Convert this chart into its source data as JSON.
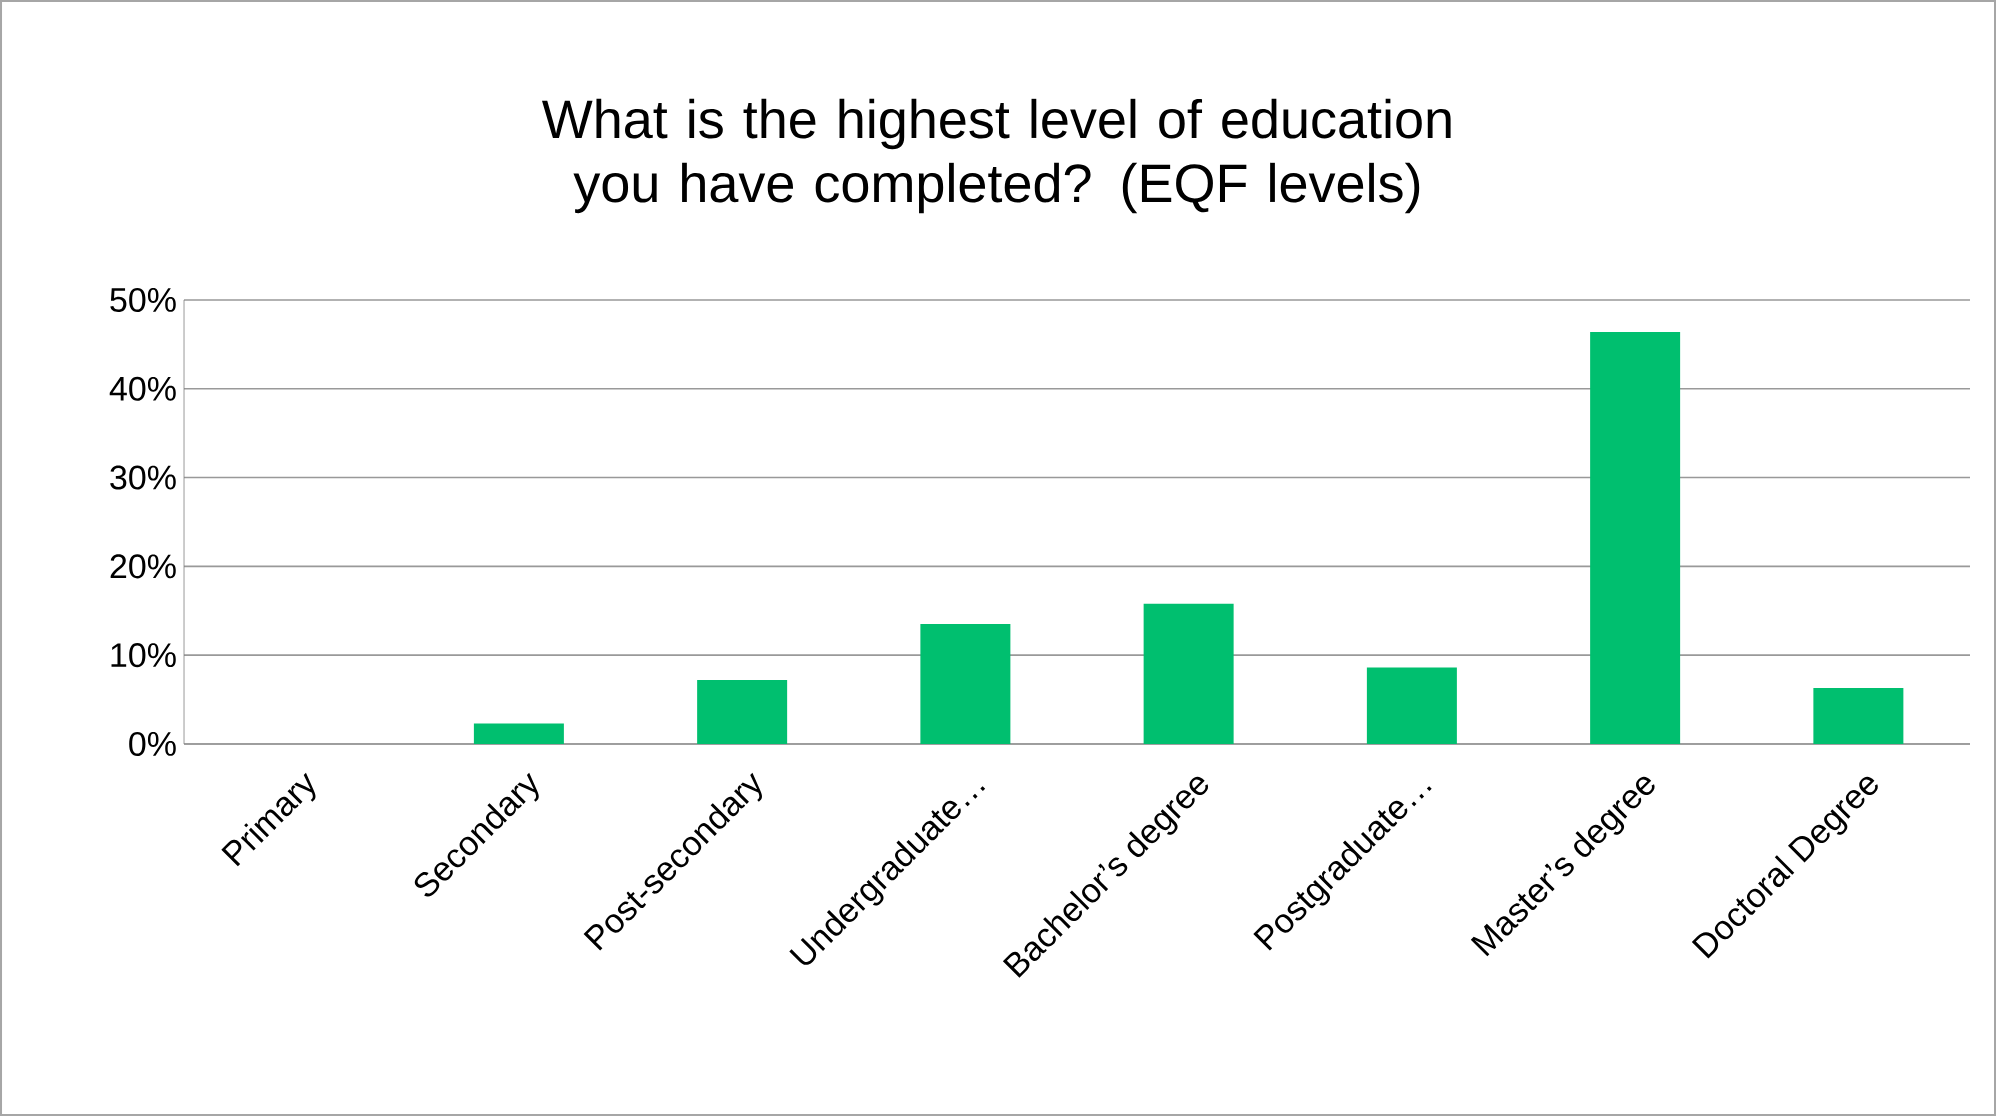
{
  "chart_data": {
    "type": "bar",
    "title": "What is the highest level of education you have completed? (EQF levels)",
    "categories": [
      "Primary",
      "Secondary",
      "Post-secondary",
      "Undergraduate…",
      "Bachelor’s degree",
      "Postgraduate…",
      "Master’s degree",
      "Doctoral Degree"
    ],
    "values": [
      0,
      2.3,
      7.2,
      13.5,
      15.8,
      8.6,
      46.4,
      6.3
    ],
    "color": "#00bf6f",
    "ylim": [
      0,
      50
    ],
    "yticks": [
      {
        "value": 0,
        "label": "0%"
      },
      {
        "value": 10,
        "label": "10%"
      },
      {
        "value": 20,
        "label": "20%"
      },
      {
        "value": 30,
        "label": "30%"
      },
      {
        "value": 40,
        "label": "40%"
      },
      {
        "value": 50,
        "label": "50%"
      }
    ],
    "grid": "y"
  }
}
